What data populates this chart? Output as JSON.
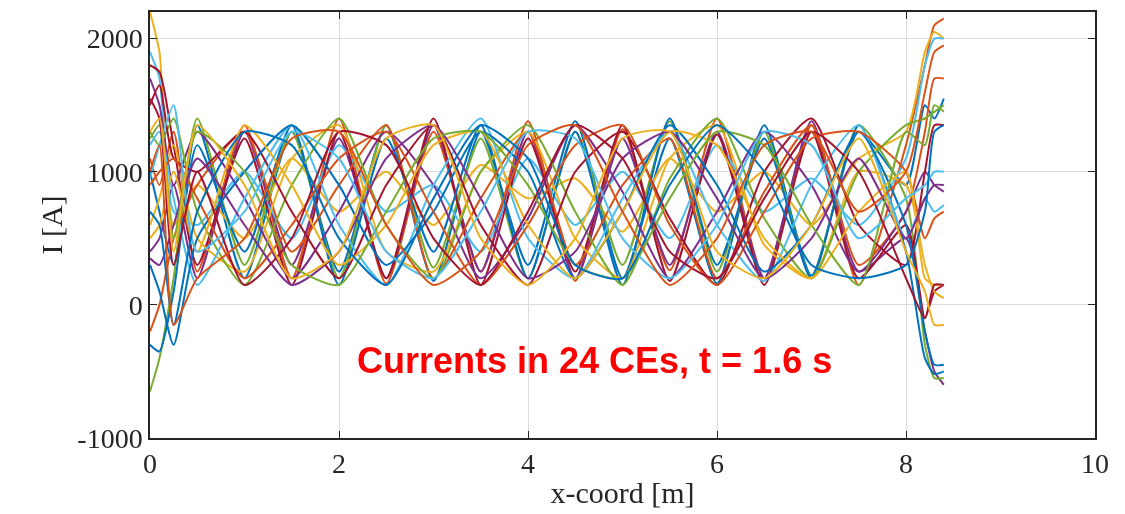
{
  "chart_data": {
    "type": "line",
    "xlabel": "x-coord [m]",
    "ylabel": "I [A]",
    "x": [
      0,
      0.1,
      0.25,
      0.5,
      1,
      1.5,
      2,
      2.5,
      3,
      3.5,
      4,
      4.5,
      5,
      5.5,
      6,
      6.5,
      7,
      7.5,
      8,
      8.2,
      8.3,
      8.4
    ],
    "xlim": [
      0,
      10
    ],
    "xticks": [
      0,
      2,
      4,
      6,
      8,
      10
    ],
    "ylim": [
      -1000,
      2200
    ],
    "yticks": [
      -1000,
      0,
      1000,
      2000
    ],
    "grid": true,
    "marker": "none",
    "line_style": "solid",
    "annotations": [
      "Currents in 24 CEs, t = 1.6 s"
    ],
    "series": [
      {
        "color": "#0072bd",
        "values": [
          1000,
          700,
          300,
          1350,
          200,
          1300,
          250,
          1350,
          180,
          1300,
          300,
          1380,
          200,
          1250,
          160,
          1350,
          220,
          1300,
          900,
          1500,
          1400,
          1550
        ]
      },
      {
        "color": "#d95319",
        "values": [
          1100,
          900,
          1300,
          250,
          1350,
          200,
          1400,
          160,
          1300,
          250,
          1380,
          180,
          1320,
          260,
          1400,
          200,
          1350,
          150,
          1200,
          1800,
          2100,
          2150
        ]
      },
      {
        "color": "#edb120",
        "values": [
          2200,
          1900,
          600,
          900,
          500,
          1100,
          700,
          1000,
          600,
          1050,
          800,
          950,
          550,
          1100,
          700,
          1000,
          600,
          1100,
          1300,
          1900,
          2050,
          2000
        ]
      },
      {
        "color": "#7e2f8e",
        "values": [
          400,
          500,
          900,
          200,
          1300,
          300,
          1250,
          200,
          1350,
          250,
          1300,
          200,
          1250,
          300,
          1300,
          200,
          1380,
          250,
          500,
          -200,
          -500,
          -600
        ]
      },
      {
        "color": "#77ac30",
        "values": [
          -650,
          -400,
          200,
          1400,
          300,
          1300,
          200,
          1350,
          280,
          1250,
          200,
          1300,
          300,
          1380,
          250,
          1300,
          200,
          1350,
          800,
          -300,
          -550,
          -550
        ]
      },
      {
        "color": "#4dbeee",
        "values": [
          1900,
          1700,
          700,
          600,
          1000,
          500,
          1200,
          700,
          900,
          400,
          1100,
          600,
          1000,
          500,
          1200,
          700,
          950,
          600,
          1100,
          1800,
          2000,
          2000
        ]
      },
      {
        "color": "#a2142f",
        "values": [
          1800,
          1750,
          1200,
          300,
          1250,
          150,
          1300,
          200,
          1400,
          150,
          1250,
          250,
          1350,
          180,
          1280,
          150,
          1300,
          200,
          600,
          -100,
          100,
          150
        ]
      },
      {
        "color": "#0072bd",
        "values": [
          -300,
          -350,
          100,
          1200,
          400,
          1350,
          150,
          1250,
          400,
          1350,
          200,
          1300,
          150,
          1400,
          300,
          1250,
          200,
          1350,
          400,
          -400,
          -520,
          -500
        ]
      },
      {
        "color": "#d95319",
        "values": [
          -200,
          0,
          500,
          900,
          1300,
          400,
          900,
          1350,
          200,
          800,
          1300,
          300,
          900,
          1250,
          200,
          850,
          1350,
          300,
          700,
          1300,
          1700,
          1700
        ]
      },
      {
        "color": "#edb120",
        "values": [
          600,
          800,
          1200,
          500,
          250,
          1100,
          1350,
          400,
          250,
          1000,
          1300,
          500,
          200,
          1100,
          1350,
          450,
          200,
          1000,
          900,
          300,
          100,
          50
        ]
      },
      {
        "color": "#7e2f8e",
        "values": [
          1700,
          1500,
          900,
          1300,
          800,
          200,
          700,
          1300,
          900,
          200,
          650,
          1350,
          850,
          200,
          700,
          1300,
          900,
          250,
          700,
          1000,
          900,
          850
        ]
      },
      {
        "color": "#77ac30",
        "values": [
          1300,
          1200,
          1400,
          700,
          150,
          900,
          1400,
          600,
          200,
          1000,
          1350,
          700,
          150,
          950,
          1400,
          650,
          200,
          1000,
          1350,
          1400,
          1450,
          1500
        ]
      },
      {
        "color": "#4dbeee",
        "values": [
          1200,
          1300,
          800,
          150,
          800,
          1350,
          600,
          150,
          900,
          1400,
          500,
          200,
          800,
          1300,
          600,
          180,
          900,
          1350,
          500,
          800,
          700,
          750
        ]
      },
      {
        "color": "#a2142f",
        "values": [
          1500,
          1650,
          1100,
          1000,
          1300,
          700,
          200,
          900,
          1350,
          600,
          150,
          1000,
          1300,
          650,
          150,
          1000,
          1400,
          600,
          300,
          1000,
          1350,
          1350
        ]
      },
      {
        "color": "#0072bd",
        "values": [
          300,
          100,
          -300,
          500,
          1000,
          1350,
          900,
          300,
          700,
          1300,
          1000,
          200,
          700,
          1350,
          900,
          250,
          600,
          1300,
          600,
          -200,
          -450,
          -450
        ]
      },
      {
        "color": "#d95319",
        "values": [
          900,
          1000,
          1100,
          800,
          200,
          600,
          1100,
          1300,
          700,
          150,
          600,
          1200,
          1350,
          600,
          150,
          700,
          1250,
          1300,
          1000,
          500,
          650,
          700
        ]
      },
      {
        "color": "#edb120",
        "values": [
          500,
          600,
          1000,
          400,
          1350,
          900,
          300,
          600,
          1200,
          1300,
          600,
          200,
          700,
          1300,
          1200,
          500,
          200,
          700,
          1000,
          200,
          150,
          150
        ]
      },
      {
        "color": "#7e2f8e",
        "values": [
          350,
          300,
          600,
          1100,
          600,
          150,
          400,
          1100,
          1350,
          800,
          200,
          400,
          1100,
          1300,
          800,
          200,
          500,
          1100,
          500,
          800,
          900,
          900
        ]
      },
      {
        "color": "#77ac30",
        "values": [
          1250,
          1350,
          500,
          1300,
          1000,
          300,
          150,
          700,
          1250,
          1300,
          900,
          300,
          200,
          800,
          1300,
          1200,
          600,
          150,
          1300,
          1200,
          1500,
          1450
        ]
      },
      {
        "color": "#4dbeee",
        "values": [
          950,
          1200,
          1500,
          400,
          700,
          1300,
          1100,
          400,
          200,
          700,
          1300,
          1250,
          500,
          200,
          600,
          1300,
          1200,
          500,
          800,
          900,
          1000,
          1000
        ]
      },
      {
        "color": "#a2142f",
        "values": [
          1550,
          1400,
          300,
          1000,
          150,
          500,
          1300,
          1200,
          500,
          150,
          700,
          1350,
          1100,
          400,
          200,
          800,
          1300,
          1000,
          200,
          -100,
          150,
          150
        ]
      },
      {
        "color": "#0072bd",
        "values": [
          700,
          600,
          -150,
          700,
          1300,
          1200,
          500,
          150,
          800,
          1350,
          1100,
          300,
          200,
          900,
          1350,
          1000,
          300,
          200,
          300,
          700,
          1300,
          1350
        ]
      },
      {
        "color": "#d95319",
        "values": [
          1000,
          1200,
          -150,
          200,
          500,
          1250,
          1300,
          600,
          150,
          400,
          1200,
          1350,
          700,
          150,
          500,
          1200,
          1300,
          700,
          1000,
          1600,
          1900,
          1950
        ]
      },
      {
        "color": "#edb120",
        "values": [
          1300,
          1400,
          400,
          1350,
          900,
          200,
          400,
          1250,
          1350,
          500,
          150,
          500,
          1250,
          1300,
          400,
          200,
          600,
          1250,
          400,
          100,
          -150,
          -150
        ]
      }
    ]
  }
}
